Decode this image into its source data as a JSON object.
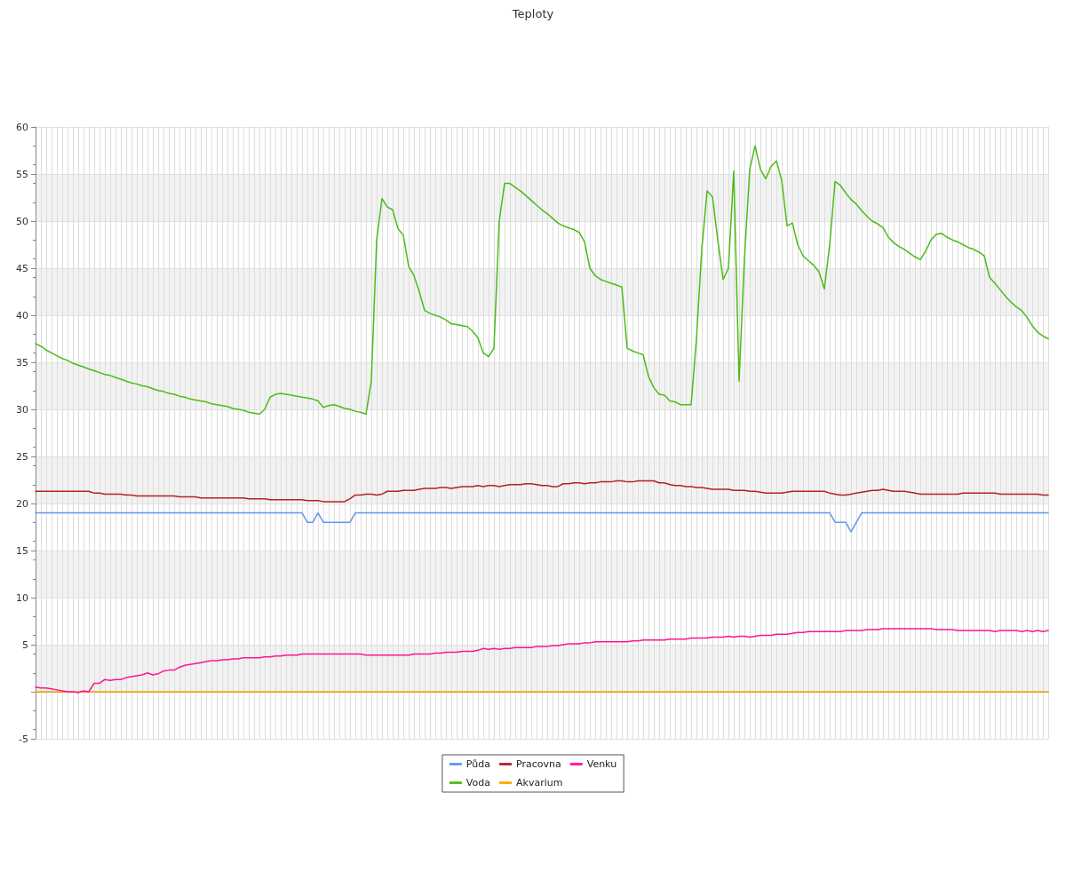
{
  "chart_data": {
    "type": "line",
    "title": "Teploty",
    "categories": [
      null,
      null,
      null,
      null,
      null,
      null,
      null,
      null,
      null,
      null,
      null,
      null,
      null,
      null,
      null,
      null,
      null,
      null,
      null,
      null,
      null,
      null,
      null,
      null,
      null,
      null,
      null,
      null,
      null,
      null,
      null,
      null,
      null,
      null,
      null,
      null,
      null,
      null,
      null,
      null,
      null,
      null,
      null,
      null,
      null,
      null,
      null,
      null,
      null,
      null,
      null,
      null,
      null,
      null,
      null,
      null,
      null,
      null,
      null,
      null,
      null,
      null,
      null,
      null,
      null,
      null,
      null,
      null,
      null,
      null,
      null,
      null,
      null,
      null,
      null,
      null,
      null,
      null,
      null,
      null,
      null,
      null,
      null,
      null,
      null,
      null,
      null,
      null,
      null,
      null,
      null,
      null,
      null,
      null,
      null,
      null,
      null,
      null,
      null,
      null,
      null,
      null,
      null,
      null,
      null,
      null,
      null,
      null,
      null,
      null,
      null,
      null,
      null,
      null,
      null,
      null,
      null,
      null,
      null,
      null,
      null,
      null,
      null,
      null,
      null,
      null,
      null,
      null,
      null,
      null,
      null,
      null,
      null,
      null,
      null,
      null,
      null,
      null,
      null,
      null,
      null,
      null,
      null,
      null,
      null,
      null,
      null,
      null,
      null,
      null,
      null,
      null,
      null,
      null,
      null,
      null,
      null,
      null,
      null,
      null,
      null,
      null,
      null,
      null,
      null,
      null,
      null,
      null,
      null,
      null,
      null,
      null,
      null,
      null,
      null,
      null,
      null,
      null,
      null,
      null,
      null,
      null,
      null,
      null,
      null,
      null,
      null,
      null,
      null,
      null,
      null
    ],
    "series": [
      {
        "name": "Půda",
        "color": "#6495ed",
        "values": [
          19,
          19,
          19,
          19,
          19,
          19,
          19,
          19,
          19,
          19,
          19,
          19,
          19,
          19,
          19,
          19,
          19,
          19,
          19,
          19,
          19,
          19,
          19,
          19,
          19,
          19,
          19,
          19,
          19,
          19,
          19,
          19,
          19,
          19,
          19,
          19,
          19,
          19,
          19,
          19,
          19,
          19,
          19,
          19,
          19,
          19,
          19,
          19,
          19,
          19,
          19,
          18,
          18,
          19,
          18,
          18,
          18,
          18,
          18,
          18,
          19,
          19,
          19,
          19,
          19,
          19,
          19,
          19,
          19,
          19,
          19,
          19,
          19,
          19,
          19,
          19,
          19,
          19,
          19,
          19,
          19,
          19,
          19,
          19,
          19,
          19,
          19,
          19,
          19,
          19,
          19,
          19,
          19,
          19,
          19,
          19,
          19,
          19,
          19,
          19,
          19,
          19,
          19,
          19,
          19,
          19,
          19,
          19,
          19,
          19,
          19,
          19,
          19,
          19,
          19,
          19,
          19,
          19,
          19,
          19,
          19,
          19,
          19,
          19,
          19,
          19,
          19,
          19,
          19,
          19,
          19,
          19,
          19,
          19,
          19,
          19,
          19,
          19,
          19,
          19,
          19,
          19,
          19,
          19,
          19,
          19,
          19,
          19,
          19,
          19,
          18,
          18,
          18,
          17,
          18,
          19,
          19,
          19,
          19,
          19,
          19,
          19,
          19,
          19,
          19,
          19,
          19,
          19,
          19,
          19,
          19,
          19,
          19,
          19,
          19,
          19,
          19,
          19,
          19,
          19,
          19,
          19,
          19,
          19,
          19,
          19,
          19,
          19,
          19,
          19,
          19
        ]
      },
      {
        "name": "Voda",
        "color": "#4cbb17",
        "values": [
          37.0,
          36.7,
          36.3,
          36.0,
          35.7,
          35.4,
          35.2,
          34.9,
          34.7,
          34.5,
          34.3,
          34.1,
          33.9,
          33.7,
          33.6,
          33.4,
          33.2,
          33.0,
          32.8,
          32.7,
          32.5,
          32.4,
          32.2,
          32.0,
          31.9,
          31.7,
          31.6,
          31.4,
          31.3,
          31.1,
          31.0,
          30.9,
          30.8,
          30.6,
          30.5,
          30.4,
          30.3,
          30.1,
          30.0,
          29.9,
          29.7,
          29.6,
          29.5,
          30.0,
          31.3,
          31.6,
          31.7,
          31.6,
          31.5,
          31.4,
          31.3,
          31.2,
          31.1,
          30.9,
          30.2,
          30.4,
          30.5,
          30.3,
          30.1,
          30.0,
          29.8,
          29.7,
          29.5,
          33,
          48,
          52.4,
          51.5,
          51.2,
          49.2,
          48.5,
          45.2,
          44.2,
          42.5,
          40.5,
          40.2,
          40.0,
          39.8,
          39.5,
          39.1,
          39.0,
          38.9,
          38.8,
          38.3,
          37.6,
          36.0,
          35.6,
          36.5,
          50,
          54.0,
          54.0,
          53.6,
          53.2,
          52.7,
          52.2,
          51.7,
          51.2,
          50.8,
          50.3,
          49.8,
          49.5,
          49.3,
          49.1,
          48.8,
          47.8,
          45.0,
          44.2,
          43.8,
          43.6,
          43.4,
          43.2,
          43.0,
          36.5,
          36.2,
          36.0,
          35.8,
          33.5,
          32.3,
          31.6,
          31.5,
          30.9,
          30.8,
          30.5,
          30.5,
          30.5,
          37.5,
          47,
          53.2,
          52.6,
          48,
          43.8,
          45.0,
          55.3,
          33.0,
          46,
          55.5,
          58.0,
          55.5,
          54.5,
          55.8,
          56.4,
          54.3,
          49.5,
          49.8,
          47.5,
          46.3,
          45.8,
          45.3,
          44.6,
          42.8,
          47.5,
          54.2,
          53.8,
          53.0,
          52.3,
          51.8,
          51.1,
          50.5,
          50.0,
          49.7,
          49.3,
          48.3,
          47.7,
          47.3,
          47.0,
          46.6,
          46.2,
          45.9,
          46.8,
          48.0,
          48.6,
          48.7,
          48.3,
          48.0,
          47.8,
          47.5,
          47.2,
          47.0,
          46.7,
          46.3,
          44.0,
          43.4,
          42.7,
          42.0,
          41.4,
          40.9,
          40.5,
          39.8,
          38.9,
          38.2,
          37.8,
          37.5
        ]
      },
      {
        "name": "Pracovna",
        "color": "#b22222",
        "values": [
          21.3,
          21.3,
          21.3,
          21.3,
          21.3,
          21.3,
          21.3,
          21.3,
          21.3,
          21.3,
          21.3,
          21.1,
          21.1,
          21.0,
          21.0,
          21.0,
          21.0,
          20.9,
          20.9,
          20.8,
          20.8,
          20.8,
          20.8,
          20.8,
          20.8,
          20.8,
          20.8,
          20.7,
          20.7,
          20.7,
          20.7,
          20.6,
          20.6,
          20.6,
          20.6,
          20.6,
          20.6,
          20.6,
          20.6,
          20.6,
          20.5,
          20.5,
          20.5,
          20.5,
          20.4,
          20.4,
          20.4,
          20.4,
          20.4,
          20.4,
          20.4,
          20.3,
          20.3,
          20.3,
          20.2,
          20.2,
          20.2,
          20.2,
          20.2,
          20.5,
          20.9,
          20.9,
          21.0,
          21.0,
          20.9,
          21.0,
          21.3,
          21.3,
          21.3,
          21.4,
          21.4,
          21.4,
          21.5,
          21.6,
          21.6,
          21.6,
          21.7,
          21.7,
          21.6,
          21.7,
          21.8,
          21.8,
          21.8,
          21.9,
          21.8,
          21.9,
          21.9,
          21.8,
          21.9,
          22.0,
          22.0,
          22.0,
          22.1,
          22.1,
          22.0,
          21.9,
          21.9,
          21.8,
          21.8,
          22.1,
          22.1,
          22.2,
          22.2,
          22.1,
          22.2,
          22.2,
          22.3,
          22.3,
          22.3,
          22.4,
          22.4,
          22.3,
          22.3,
          22.4,
          22.4,
          22.4,
          22.4,
          22.2,
          22.2,
          22.0,
          21.9,
          21.9,
          21.8,
          21.8,
          21.7,
          21.7,
          21.6,
          21.5,
          21.5,
          21.5,
          21.5,
          21.4,
          21.4,
          21.4,
          21.3,
          21.3,
          21.2,
          21.1,
          21.1,
          21.1,
          21.1,
          21.2,
          21.3,
          21.3,
          21.3,
          21.3,
          21.3,
          21.3,
          21.3,
          21.1,
          21.0,
          20.9,
          20.9,
          21.0,
          21.1,
          21.2,
          21.3,
          21.4,
          21.4,
          21.5,
          21.4,
          21.3,
          21.3,
          21.3,
          21.2,
          21.1,
          21.0,
          21.0,
          21.0,
          21.0,
          21.0,
          21.0,
          21.0,
          21.0,
          21.1,
          21.1,
          21.1,
          21.1,
          21.1,
          21.1,
          21.1,
          21.0,
          21.0,
          21.0,
          21.0,
          21.0,
          21.0,
          21.0,
          21.0,
          20.9,
          20.9
        ]
      },
      {
        "name": "Akvarium",
        "color": "#ffa500",
        "values": [
          0,
          0,
          0,
          0,
          0,
          0,
          0,
          0,
          0,
          0,
          0,
          0,
          0,
          0,
          0,
          0,
          0,
          0,
          0,
          0,
          0,
          0,
          0,
          0,
          0,
          0,
          0,
          0,
          0,
          0,
          0,
          0,
          0,
          0,
          0,
          0,
          0,
          0,
          0,
          0,
          0,
          0,
          0,
          0,
          0,
          0,
          0,
          0,
          0,
          0,
          0,
          0,
          0,
          0,
          0,
          0,
          0,
          0,
          0,
          0,
          0,
          0,
          0,
          0,
          0,
          0,
          0,
          0,
          0,
          0,
          0,
          0,
          0,
          0,
          0,
          0,
          0,
          0,
          0,
          0,
          0,
          0,
          0,
          0,
          0,
          0,
          0,
          0,
          0,
          0,
          0,
          0,
          0,
          0,
          0,
          0,
          0,
          0,
          0,
          0,
          0,
          0,
          0,
          0,
          0,
          0,
          0,
          0,
          0,
          0,
          0,
          0,
          0,
          0,
          0,
          0,
          0,
          0,
          0,
          0,
          0,
          0,
          0,
          0,
          0,
          0,
          0,
          0,
          0,
          0,
          0,
          0,
          0,
          0,
          0,
          0,
          0,
          0,
          0,
          0,
          0,
          0,
          0,
          0,
          0,
          0,
          0,
          0,
          0,
          0,
          0,
          0,
          0,
          0,
          0,
          0,
          0,
          0,
          0,
          0,
          0,
          0,
          0,
          0,
          0,
          0,
          0,
          0,
          0,
          0,
          0,
          0,
          0,
          0,
          0,
          0,
          0,
          0,
          0,
          0,
          0,
          0,
          0,
          0,
          0,
          0,
          0,
          0,
          0,
          0,
          0
        ]
      },
      {
        "name": "Venku",
        "color": "#ff1493",
        "values": [
          0.5,
          0.4,
          0.4,
          0.3,
          0.2,
          0.1,
          0.0,
          0.0,
          -0.1,
          0.1,
          0.0,
          0.9,
          0.9,
          1.3,
          1.2,
          1.3,
          1.3,
          1.5,
          1.6,
          1.7,
          1.8,
          2.0,
          1.8,
          1.9,
          2.2,
          2.3,
          2.3,
          2.6,
          2.8,
          2.9,
          3.0,
          3.1,
          3.2,
          3.3,
          3.3,
          3.4,
          3.4,
          3.5,
          3.5,
          3.6,
          3.6,
          3.6,
          3.6,
          3.7,
          3.7,
          3.8,
          3.8,
          3.9,
          3.9,
          3.9,
          4.0,
          4.0,
          4.0,
          4.0,
          4.0,
          4.0,
          4.0,
          4.0,
          4.0,
          4.0,
          4.0,
          4.0,
          3.9,
          3.9,
          3.9,
          3.9,
          3.9,
          3.9,
          3.9,
          3.9,
          3.9,
          4.0,
          4.0,
          4.0,
          4.0,
          4.1,
          4.1,
          4.2,
          4.2,
          4.2,
          4.3,
          4.3,
          4.3,
          4.4,
          4.6,
          4.5,
          4.6,
          4.5,
          4.6,
          4.6,
          4.7,
          4.7,
          4.7,
          4.7,
          4.8,
          4.8,
          4.8,
          4.9,
          4.9,
          5.0,
          5.1,
          5.1,
          5.1,
          5.2,
          5.2,
          5.3,
          5.3,
          5.3,
          5.3,
          5.3,
          5.3,
          5.3,
          5.4,
          5.4,
          5.5,
          5.5,
          5.5,
          5.5,
          5.5,
          5.6,
          5.6,
          5.6,
          5.6,
          5.7,
          5.7,
          5.7,
          5.7,
          5.8,
          5.8,
          5.8,
          5.9,
          5.8,
          5.9,
          5.9,
          5.8,
          5.9,
          6.0,
          6.0,
          6.0,
          6.1,
          6.1,
          6.1,
          6.2,
          6.3,
          6.3,
          6.4,
          6.4,
          6.4,
          6.4,
          6.4,
          6.4,
          6.4,
          6.5,
          6.5,
          6.5,
          6.5,
          6.6,
          6.6,
          6.6,
          6.7,
          6.7,
          6.7,
          6.7,
          6.7,
          6.7,
          6.7,
          6.7,
          6.7,
          6.7,
          6.6,
          6.6,
          6.6,
          6.6,
          6.5,
          6.5,
          6.5,
          6.5,
          6.5,
          6.5,
          6.5,
          6.4,
          6.5,
          6.5,
          6.5,
          6.5,
          6.4,
          6.5,
          6.4,
          6.5,
          6.4,
          6.5
        ]
      }
    ],
    "ylim": [
      -5,
      60
    ],
    "yticks": [
      -5,
      {
        "value": 0,
        "label": null
      },
      5,
      10,
      15,
      20,
      25,
      30,
      35,
      40,
      45,
      50,
      55,
      60
    ],
    "tick_labels": "y",
    "grid": true,
    "legend": "bottom",
    "line_style": "solid"
  }
}
